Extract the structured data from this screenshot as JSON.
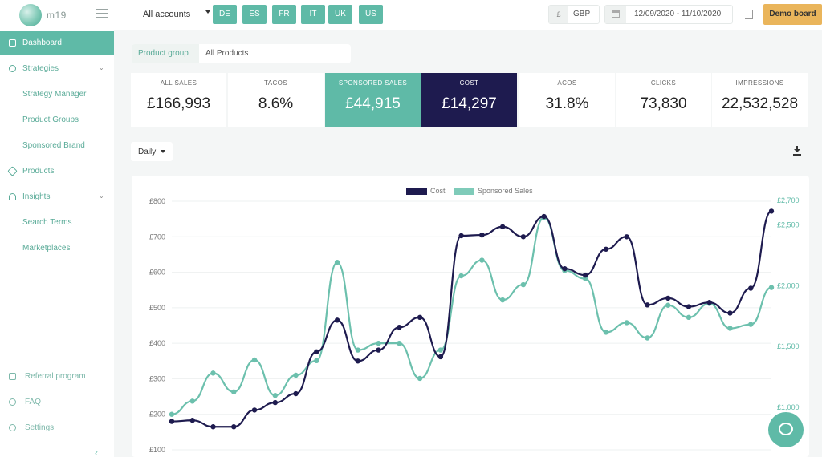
{
  "app": {
    "logo_text": "m19"
  },
  "header": {
    "account_select": "All accounts",
    "countries": [
      "DE",
      "ES",
      "FR",
      "IT",
      "UK",
      "US"
    ],
    "currency_symbol": "£",
    "currency_code": "GBP",
    "date_range": "12/09/2020 - 11/10/2020",
    "demo_button": "Demo board"
  },
  "sidebar": {
    "items": [
      {
        "label": "Dashboard",
        "active": true
      },
      {
        "label": "Strategies"
      },
      {
        "label": "Strategy Manager"
      },
      {
        "label": "Product Groups"
      },
      {
        "label": "Sponsored Brand"
      },
      {
        "label": "Products"
      },
      {
        "label": "Insights"
      },
      {
        "label": "Search Terms"
      },
      {
        "label": "Marketplaces"
      },
      {
        "label": "Referral program"
      },
      {
        "label": "FAQ"
      },
      {
        "label": "Settings"
      }
    ]
  },
  "filters": {
    "product_group_label": "Product group",
    "product_group_value": "All Products",
    "granularity": "Daily"
  },
  "kpis": [
    {
      "label": "ALL SALES",
      "value": "£166,993"
    },
    {
      "label": "TACOS",
      "value": "8.6%"
    },
    {
      "label": "SPONSORED SALES",
      "value": "£44,915"
    },
    {
      "label": "COST",
      "value": "£14,297"
    },
    {
      "label": "ACOS",
      "value": "31.8%"
    },
    {
      "label": "CLICKS",
      "value": "73,830"
    },
    {
      "label": "IMPRESSIONS",
      "value": "22,532,528"
    }
  ],
  "colors": {
    "accent": "#5fbaa7",
    "navy": "#1e1b4f",
    "demo": "#eab55b"
  },
  "chart_data": {
    "type": "line",
    "legend": [
      "Cost",
      "Sponsored Sales"
    ],
    "left_ticks": [
      "£100",
      "£200",
      "£300",
      "£400",
      "£500",
      "£600",
      "£700",
      "£800"
    ],
    "right_ticks": [
      "£1,000",
      "£1,500",
      "£2,000",
      "£2,500",
      "£2,700"
    ],
    "ylim_left": [
      100,
      800
    ],
    "ylim_right": [
      500,
      2700
    ],
    "series": [
      {
        "name": "Cost",
        "axis": "left",
        "values": [
          180,
          183,
          165,
          165,
          212,
          233,
          258,
          376,
          465,
          350,
          381,
          445,
          473,
          362,
          703,
          705,
          728,
          700,
          757,
          610,
          592,
          665,
          700,
          508,
          527,
          503,
          515,
          485,
          555,
          772
        ]
      },
      {
        "name": "Sponsored Sales",
        "axis": "left",
        "values": [
          200,
          237,
          316,
          263,
          353,
          253,
          310,
          351,
          628,
          381,
          400,
          400,
          301,
          381,
          590,
          634,
          522,
          565,
          754,
          605,
          582,
          431,
          458,
          415,
          507,
          473,
          512,
          442,
          453,
          557
        ]
      }
    ]
  }
}
